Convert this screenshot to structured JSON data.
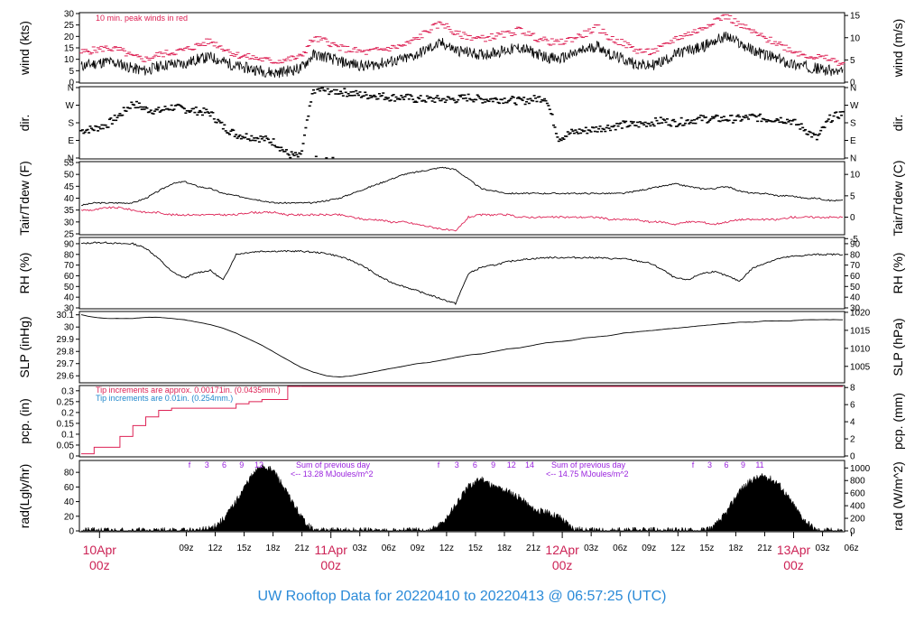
{
  "title": "UW Rooftop Data for 20220410  to  20220413 @ 06:57:25  (UTC)",
  "colors": {
    "black": "#000000",
    "red": "#dd2255",
    "blue": "#2288cc",
    "purple": "#9922dd"
  },
  "time_axis": {
    "hour_labels": [
      "09z",
      "12z",
      "15z",
      "18z",
      "21z",
      "03z",
      "06z",
      "09z",
      "12z",
      "15z",
      "18z",
      "21z",
      "03z",
      "06z",
      "09z",
      "12z",
      "15z",
      "18z",
      "21z",
      "03z",
      "06z"
    ],
    "date_labels": [
      {
        "day": "10Apr",
        "hour": "00z",
        "hours_from_start": 0
      },
      {
        "day": "11Apr",
        "hour": "00z",
        "hours_from_start": 24
      },
      {
        "day": "12Apr",
        "hour": "00z",
        "hours_from_start": 48
      },
      {
        "day": "13Apr",
        "hour": "00z",
        "hours_from_start": 72
      }
    ]
  },
  "chart_data": [
    {
      "type": "line",
      "name": "wind",
      "ylabel": "wind (kts)",
      "ylabel_right": "wind (m/s)",
      "ylim": [
        0,
        30
      ],
      "yticks": [
        0,
        5,
        10,
        15,
        20,
        25,
        30
      ],
      "yticks_right": [
        0,
        5,
        10,
        15
      ],
      "right_scale": 0.5144,
      "annotation": "10 min. peak winds in red",
      "series": [
        {
          "values": [
            7,
            8,
            9,
            8,
            6,
            5,
            7,
            8,
            8,
            10,
            11,
            9,
            7,
            6,
            5,
            4,
            5,
            6,
            12,
            11,
            9,
            8,
            7,
            8,
            9,
            10,
            12,
            15,
            17,
            14,
            13,
            12,
            13,
            14,
            15,
            13,
            11,
            10,
            12,
            14,
            16,
            12,
            10,
            8,
            7,
            9,
            12,
            14,
            15,
            18,
            20,
            17,
            14,
            12,
            10,
            8,
            7,
            6,
            5,
            4
          ]
        },
        {
          "peak": true,
          "values": [
            13,
            14,
            15,
            14,
            11,
            10,
            12,
            13,
            14,
            16,
            18,
            15,
            12,
            11,
            10,
            9,
            10,
            11,
            19,
            18,
            15,
            14,
            13,
            14,
            15,
            16,
            19,
            23,
            26,
            21,
            20,
            19,
            20,
            21,
            23,
            20,
            18,
            17,
            19,
            21,
            24,
            19,
            17,
            14,
            13,
            15,
            19,
            21,
            23,
            27,
            29,
            25,
            22,
            19,
            17,
            14,
            12,
            11,
            10,
            8
          ]
        }
      ]
    },
    {
      "type": "scatter",
      "name": "dir",
      "ylabel": "dir.",
      "ylabel_right": "dir.",
      "ylim": [
        0,
        360
      ],
      "ytick_labels": [
        "N",
        "E",
        "S",
        "W",
        "N"
      ],
      "ytick_values": [
        0,
        90,
        180,
        270,
        360
      ],
      "values": [
        140,
        150,
        170,
        220,
        280,
        250,
        240,
        260,
        250,
        240,
        230,
        160,
        120,
        110,
        100,
        80,
        20,
        5,
        350,
        345,
        340,
        330,
        320,
        320,
        310,
        310,
        300,
        300,
        300,
        300,
        310,
        300,
        300,
        300,
        290,
        300,
        310,
        100,
        130,
        140,
        150,
        160,
        170,
        170,
        180,
        190,
        180,
        190,
        200,
        200,
        200,
        200,
        210,
        200,
        200,
        190,
        150,
        100,
        200,
        230
      ]
    },
    {
      "type": "line",
      "name": "temp",
      "ylabel": "Tair/Tdew (F)",
      "ylabel_right": "Tair/Tdew (C)",
      "ylim": [
        25,
        55
      ],
      "yticks": [
        25,
        30,
        35,
        40,
        45,
        50,
        55
      ],
      "yticks_right": [
        -5,
        0,
        5,
        10
      ],
      "series": [
        {
          "values": [
            37,
            38,
            38,
            38,
            38,
            40,
            43,
            46,
            47,
            45,
            44,
            42,
            41,
            40,
            39,
            38,
            38,
            38,
            38,
            39,
            40,
            42,
            44,
            46,
            48,
            50,
            51,
            52,
            53,
            52,
            48,
            44,
            43,
            42,
            42,
            42,
            42,
            42,
            42,
            42,
            42,
            42,
            42,
            43,
            44,
            45,
            46,
            45,
            44,
            44,
            45,
            43,
            42,
            42,
            41,
            41,
            40,
            40,
            39,
            39
          ]
        },
        {
          "series_color": "red",
          "values": [
            35,
            35,
            36,
            36,
            35,
            34,
            34,
            33,
            33,
            33,
            33,
            33,
            33,
            34,
            34,
            34,
            33,
            33,
            33,
            33,
            33,
            32,
            31,
            31,
            30,
            30,
            29,
            28,
            27,
            26,
            32,
            33,
            33,
            33,
            32,
            32,
            32,
            32,
            32,
            32,
            32,
            31,
            31,
            31,
            30,
            30,
            29,
            30,
            30,
            29,
            30,
            31,
            31,
            31,
            31,
            32,
            32,
            32,
            32,
            32
          ]
        }
      ]
    },
    {
      "type": "line",
      "name": "rh",
      "ylabel": "RH (%)",
      "ylabel_right": "RH (%)",
      "ylim": [
        30,
        95
      ],
      "yticks": [
        30,
        40,
        50,
        60,
        70,
        80,
        90
      ],
      "values": [
        90,
        91,
        91,
        90,
        90,
        86,
        76,
        64,
        58,
        63,
        65,
        56,
        80,
        82,
        83,
        83,
        83,
        83,
        82,
        81,
        78,
        74,
        68,
        60,
        54,
        50,
        46,
        42,
        38,
        34,
        62,
        68,
        70,
        73,
        75,
        76,
        77,
        77,
        77,
        77,
        77,
        76,
        76,
        74,
        72,
        66,
        58,
        56,
        62,
        64,
        60,
        55,
        67,
        72,
        76,
        78,
        79,
        80,
        80,
        80
      ]
    },
    {
      "type": "line",
      "name": "slp",
      "ylabel": "SLP (inHg)",
      "ylabel_right": "SLP (hPa)",
      "ylim": [
        29.55,
        30.12
      ],
      "yticks": [
        29.6,
        29.7,
        29.8,
        29.9,
        30.0,
        30.1
      ],
      "yticks_right": [
        1005,
        1010,
        1015,
        1020
      ],
      "values": [
        30.1,
        30.08,
        30.07,
        30.07,
        30.07,
        30.08,
        30.08,
        30.07,
        30.06,
        30.04,
        30.02,
        29.99,
        29.95,
        29.9,
        29.85,
        29.79,
        29.73,
        29.67,
        29.63,
        29.6,
        29.59,
        29.6,
        29.62,
        29.64,
        29.66,
        29.68,
        29.7,
        29.71,
        29.73,
        29.75,
        29.77,
        29.78,
        29.8,
        29.82,
        29.83,
        29.85,
        29.87,
        29.88,
        29.89,
        29.91,
        29.92,
        29.93,
        29.95,
        29.96,
        29.97,
        29.98,
        29.99,
        30.0,
        30.01,
        30.02,
        30.03,
        30.04,
        30.04,
        30.05,
        30.05,
        30.05,
        30.06,
        30.06,
        30.06,
        30.06
      ]
    },
    {
      "type": "line",
      "name": "pcp",
      "ylabel": "pcp. (in)",
      "ylabel_right": "pcp. (mm)",
      "ylim": [
        0,
        0.32
      ],
      "yticks": [
        0,
        0.05,
        0.1,
        0.15,
        0.2,
        0.25,
        0.3
      ],
      "yticks_right": [
        0,
        2,
        4,
        6,
        8
      ],
      "note_red": "Tip increments are approx. 0.00171in. (0.0435mm.)",
      "note_blue": "Tip increments are 0.01in. (0.254mm.)",
      "values": [
        0.01,
        0.04,
        0.04,
        0.09,
        0.14,
        0.18,
        0.21,
        0.22,
        0.22,
        0.22,
        0.22,
        0.22,
        0.24,
        0.25,
        0.26,
        0.26,
        0.32,
        0.32,
        0.32,
        0.32,
        0.32,
        0.32,
        0.32,
        0.32,
        0.32,
        0.32,
        0.32,
        0.32,
        0.32,
        0.32,
        0.32,
        0.32,
        0.32,
        0.32,
        0.32,
        0.32,
        0.32,
        0.32,
        0.32,
        0.32,
        0.32,
        0.32,
        0.32,
        0.32,
        0.32,
        0.32,
        0.32,
        0.32,
        0.32,
        0.32,
        0.32,
        0.32,
        0.32,
        0.32,
        0.32,
        0.32,
        0.32,
        0.32,
        0.32,
        0.32
      ]
    },
    {
      "type": "area",
      "name": "rad",
      "ylabel": "rad(Lgly/hr)",
      "ylabel_right": "rad (W/m^2)",
      "ylim": [
        0,
        95
      ],
      "yticks": [
        0,
        20,
        40,
        60,
        80
      ],
      "yticks_right": [
        0,
        200,
        400,
        600,
        800,
        1000
      ],
      "right_scale": 11.63,
      "values": [
        0,
        0,
        0,
        0,
        0,
        0,
        0,
        0,
        0,
        0,
        3,
        15,
        40,
        70,
        90,
        80,
        50,
        20,
        0,
        0,
        0,
        0,
        0,
        0,
        0,
        0,
        0,
        0,
        10,
        35,
        60,
        72,
        60,
        55,
        45,
        30,
        25,
        20,
        5,
        0,
        0,
        0,
        0,
        0,
        0,
        0,
        0,
        0,
        0,
        5,
        25,
        55,
        70,
        75,
        65,
        40,
        15,
        0,
        0,
        0
      ],
      "hour_ticks_day1": [
        "f",
        "3",
        "6",
        "9",
        "12"
      ],
      "hour_ticks_day2": [
        "f",
        "3",
        "6",
        "9",
        "12",
        "14"
      ],
      "hour_ticks_day3": [
        "f",
        "3",
        "6",
        "9",
        "11"
      ],
      "sum_label": "Sum of previous day",
      "sum_day2": "<-- 13.28 MJoules/m^2",
      "sum_day3": "<-- 14.75 MJoules/m^2"
    }
  ]
}
